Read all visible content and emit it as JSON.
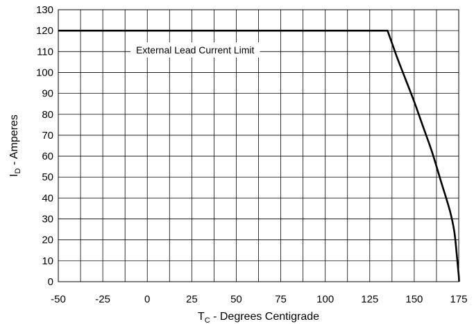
{
  "chart_data": {
    "type": "line",
    "title": "",
    "xlabel_main": "T",
    "xlabel_sub": "C",
    "xlabel_rest": " - Degrees Centigrade",
    "ylabel_main": "I",
    "ylabel_sub": "D",
    "ylabel_rest": " - Amperes",
    "xlim": [
      -50,
      175
    ],
    "ylim": [
      0,
      130
    ],
    "xticks": [
      -50,
      -25,
      0,
      25,
      50,
      75,
      100,
      125,
      150,
      175
    ],
    "yticks": [
      0,
      10,
      20,
      30,
      40,
      50,
      60,
      70,
      80,
      90,
      100,
      110,
      120,
      130
    ],
    "grid": true,
    "annotation": "External Lead Current Limit",
    "series": [
      {
        "x": [
          -50,
          135,
          140,
          145,
          150,
          155,
          160,
          165,
          170,
          172.5,
          174,
          175,
          175.2
        ],
        "y": [
          120,
          120,
          108,
          97,
          86,
          74,
          62,
          48,
          34,
          24,
          12,
          3,
          0
        ]
      }
    ]
  }
}
